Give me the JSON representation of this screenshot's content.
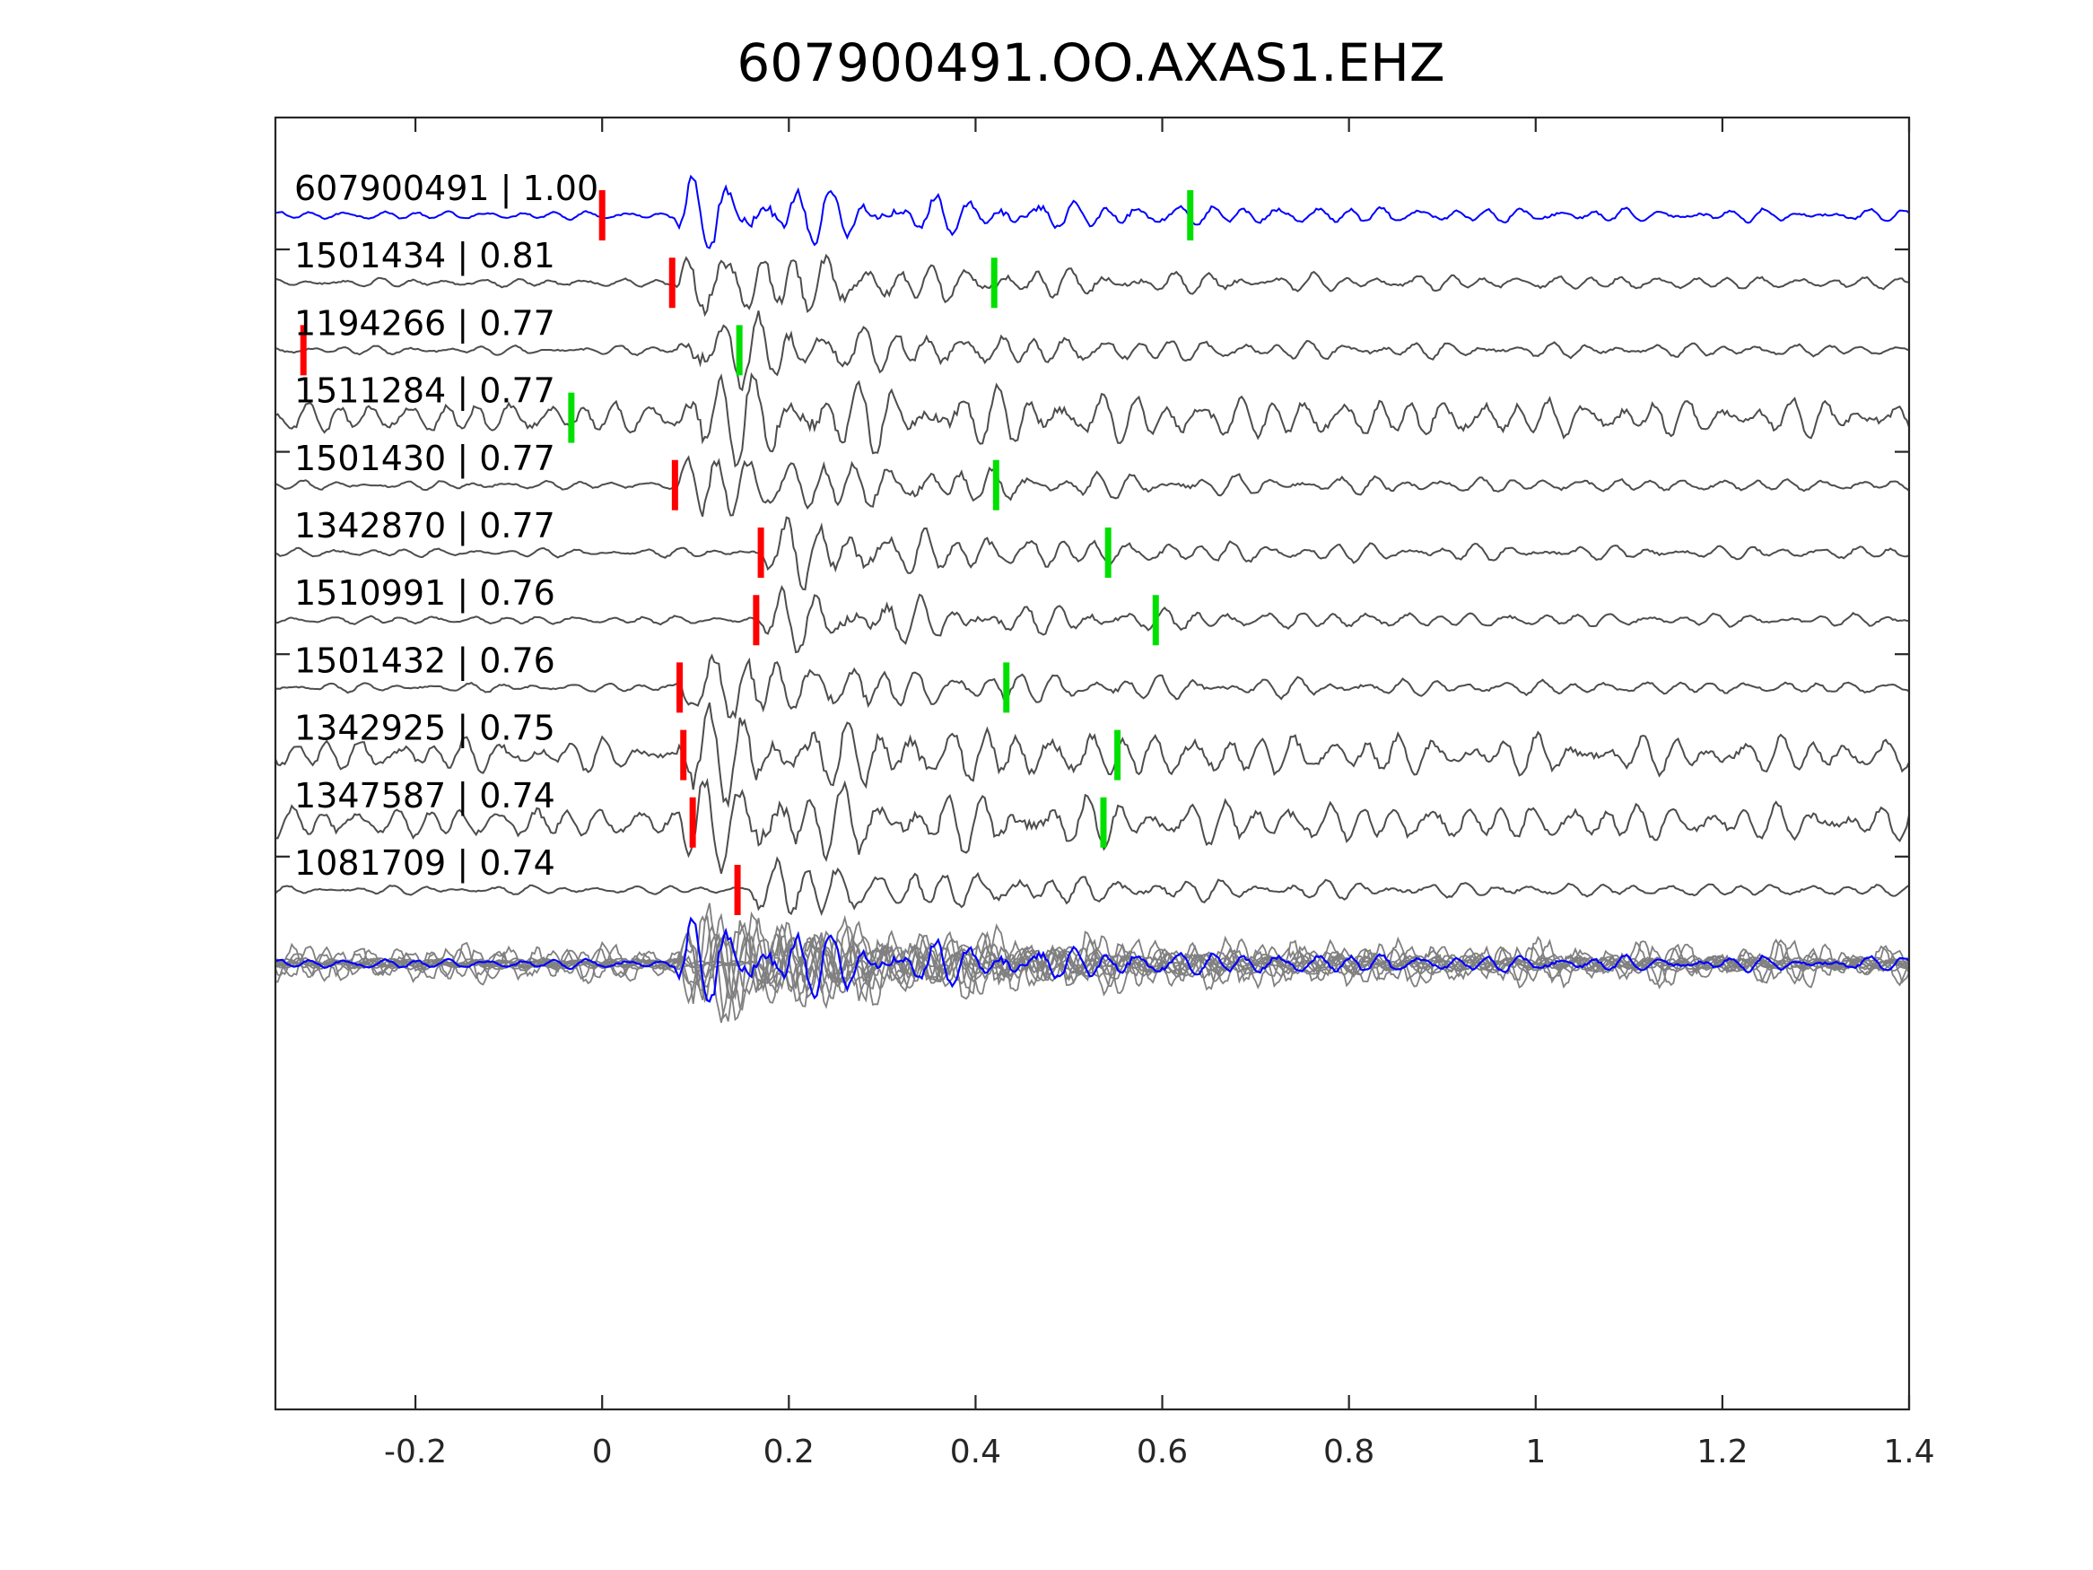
{
  "chart_data": {
    "type": "line",
    "title": "607900491.OO.AXAS1.EHZ",
    "xlabel": "",
    "ylabel": "",
    "xlim": [
      -0.35,
      1.4
    ],
    "xticks": [
      -0.2,
      0,
      0.2,
      0.4,
      0.6,
      0.8,
      1,
      1.2,
      1.4
    ],
    "xtick_labels": [
      "-0.2",
      "0",
      "0.2",
      "0.4",
      "0.6",
      "0.8",
      "1",
      "1.2",
      "1.4"
    ],
    "grid": false,
    "colors": {
      "template": "#0000ff",
      "match": "#4d4d4d",
      "stack": "#808080",
      "p_pick": "#ff0000",
      "s_pick": "#00e000",
      "axes": "#262626"
    },
    "series": [
      {
        "name": "607900491",
        "cc": "1.00",
        "label": "607900491 | 1.00",
        "p_pick": 0.0,
        "s_pick": 0.63,
        "onset": 0.08,
        "amp": 1.0
      },
      {
        "name": "1501434",
        "cc": "0.81",
        "label": "1501434 | 0.81",
        "p_pick": 0.075,
        "s_pick": 0.42,
        "onset": 0.08,
        "amp": 1.0
      },
      {
        "name": "1194266",
        "cc": "0.77",
        "label": "1194266 | 0.77",
        "p_pick": -0.32,
        "s_pick": 0.147,
        "onset": 0.08,
        "amp": 1.0
      },
      {
        "name": "1511284",
        "cc": "0.77",
        "label": "1511284 | 0.77",
        "p_pick": null,
        "s_pick": -0.033,
        "onset": 0.08,
        "amp": 0.95
      },
      {
        "name": "1501430",
        "cc": "0.77",
        "label": "1501430 | 0.77",
        "p_pick": 0.078,
        "s_pick": 0.422,
        "onset": 0.08,
        "amp": 1.0
      },
      {
        "name": "1342870",
        "cc": "0.77",
        "label": "1342870 | 0.77",
        "p_pick": 0.17,
        "s_pick": 0.542,
        "onset": 0.17,
        "amp": 0.85
      },
      {
        "name": "1510991",
        "cc": "0.76",
        "label": "1510991 | 0.76",
        "p_pick": 0.165,
        "s_pick": 0.593,
        "onset": 0.17,
        "amp": 0.75
      },
      {
        "name": "1501432",
        "cc": "0.76",
        "label": "1501432 | 0.76",
        "p_pick": 0.083,
        "s_pick": 0.433,
        "onset": 0.08,
        "amp": 1.0
      },
      {
        "name": "1342925",
        "cc": "0.75",
        "label": "1342925 | 0.75",
        "p_pick": 0.087,
        "s_pick": 0.552,
        "onset": 0.08,
        "amp": 0.9
      },
      {
        "name": "1347587",
        "cc": "0.74",
        "label": "1347587 | 0.74",
        "p_pick": 0.097,
        "s_pick": 0.537,
        "onset": 0.08,
        "amp": 0.9
      },
      {
        "name": "1081709",
        "cc": "0.74",
        "label": "1081709 | 0.74",
        "p_pick": 0.145,
        "s_pick": null,
        "onset": 0.16,
        "amp": 0.8
      }
    ],
    "stack": {
      "traces": 11,
      "includes_template": true
    }
  }
}
